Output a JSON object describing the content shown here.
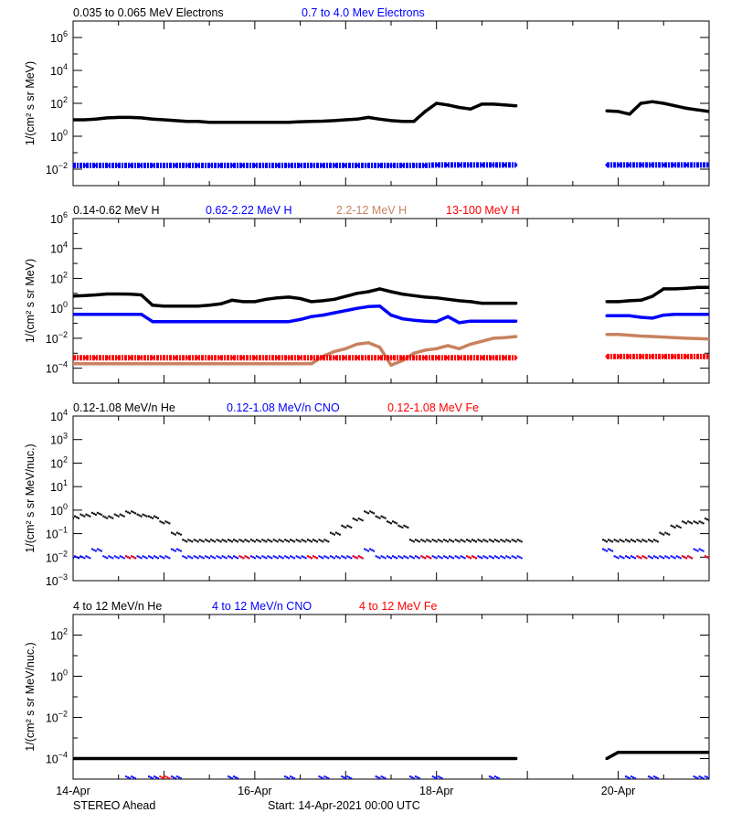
{
  "footer": {
    "spacecraft": "STEREO Ahead",
    "start": "Start: 14-Apr-2021 00:00 UTC"
  },
  "x_tick_labels": [
    "14-Apr",
    "16-Apr",
    "18-Apr",
    "20-Apr"
  ],
  "x_range": [
    "14-Apr-2021 00:00",
    "21-Apr-2021 00:00"
  ],
  "colors": {
    "black": "#000000",
    "blue": "#0000ff",
    "brown": "#c8825f",
    "red": "#ff0000"
  },
  "chart_data": [
    {
      "type": "scatter",
      "ylabel": "1/(cm² s sr MeV)",
      "yscale": "log",
      "ylim": [
        0.001,
        10000000
      ],
      "ytick_exponents": [
        6,
        4,
        2,
        0,
        -2
      ],
      "x": [
        "14-Apr 00:00",
        "14-Apr 03:00",
        "14-Apr 06:00",
        "14-Apr 09:00",
        "14-Apr 12:00",
        "14-Apr 15:00",
        "14-Apr 18:00",
        "14-Apr 21:00",
        "15-Apr 00:00",
        "15-Apr 03:00",
        "15-Apr 06:00",
        "15-Apr 09:00",
        "15-Apr 12:00",
        "15-Apr 15:00",
        "15-Apr 18:00",
        "15-Apr 21:00",
        "16-Apr 00:00",
        "16-Apr 03:00",
        "16-Apr 06:00",
        "16-Apr 09:00",
        "16-Apr 12:00",
        "16-Apr 15:00",
        "16-Apr 18:00",
        "16-Apr 21:00",
        "17-Apr 00:00",
        "17-Apr 03:00",
        "17-Apr 06:00",
        "17-Apr 09:00",
        "17-Apr 12:00",
        "17-Apr 15:00",
        "17-Apr 18:00",
        "17-Apr 21:00",
        "18-Apr 00:00",
        "18-Apr 03:00",
        "18-Apr 06:00",
        "18-Apr 09:00",
        "18-Apr 12:00",
        "18-Apr 15:00",
        "18-Apr 18:00",
        "18-Apr 21:00",
        "19-Apr 00:00",
        "19-Apr 03:00",
        "19-Apr 06:00",
        "19-Apr 09:00",
        "19-Apr 12:00",
        "19-Apr 15:00",
        "19-Apr 18:00",
        "19-Apr 21:00",
        "20-Apr 00:00",
        "20-Apr 03:00",
        "20-Apr 06:00",
        "20-Apr 09:00",
        "20-Apr 12:00",
        "20-Apr 15:00",
        "20-Apr 18:00",
        "20-Apr 21:00",
        "21-Apr 00:00"
      ],
      "series": [
        {
          "name": "0.035 to 0.065 MeV Electrons",
          "color": "#000000",
          "style": "line",
          "values": [
            10,
            10,
            11,
            13,
            14,
            14,
            13,
            11,
            10,
            8.9,
            7.9,
            7.9,
            7.1,
            7.1,
            7.1,
            7.1,
            7.1,
            7.1,
            7.1,
            7.1,
            7.6,
            7.9,
            8.3,
            8.9,
            10,
            11,
            14,
            11,
            8.9,
            7.9,
            7.9,
            32,
            100,
            79,
            56,
            45,
            89,
            89,
            79,
            71,
            null,
            null,
            null,
            null,
            null,
            null,
            null,
            35,
            32,
            22,
            100,
            126,
            100,
            71,
            50,
            40,
            32
          ]
        },
        {
          "name": "0.7 to 4.0 Mev Electrons",
          "color": "#0000ff",
          "style": "band",
          "values": [
            0.017,
            0.017,
            0.017,
            0.017,
            0.017,
            0.017,
            0.017,
            0.017,
            0.017,
            0.017,
            0.017,
            0.017,
            0.017,
            0.017,
            0.017,
            0.017,
            0.017,
            0.017,
            0.017,
            0.017,
            0.017,
            0.017,
            0.017,
            0.017,
            0.017,
            0.017,
            0.017,
            0.017,
            0.017,
            0.017,
            0.017,
            0.017,
            0.018,
            0.018,
            0.018,
            0.018,
            0.018,
            0.018,
            0.018,
            0.018,
            null,
            null,
            null,
            null,
            null,
            null,
            null,
            0.018,
            0.018,
            0.018,
            0.018,
            0.018,
            0.018,
            0.018,
            0.018,
            0.018,
            0.018
          ]
        }
      ]
    },
    {
      "type": "scatter",
      "ylabel": "1/(cm² s sr MeV)",
      "yscale": "log",
      "ylim": [
        1e-05,
        1000000
      ],
      "ytick_exponents": [
        6,
        4,
        2,
        0,
        -2,
        -4
      ],
      "series": [
        {
          "name": "0.14-0.62 MeV H",
          "color": "#000000",
          "style": "line",
          "values": [
            6.6,
            7.1,
            7.9,
            9.1,
            9.1,
            8.9,
            7.9,
            1.6,
            1.4,
            1.4,
            1.4,
            1.4,
            1.6,
            2.0,
            3.5,
            2.8,
            2.8,
            4.0,
            5.0,
            5.6,
            4.5,
            2.8,
            3.2,
            4.0,
            6.3,
            10,
            13,
            20,
            13,
            8.9,
            7.1,
            5.6,
            5.0,
            4.0,
            3.2,
            2.8,
            2.2,
            2.2,
            2.2,
            2.2,
            null,
            null,
            null,
            null,
            null,
            null,
            null,
            2.8,
            2.8,
            3.2,
            3.5,
            6.3,
            20,
            20,
            22,
            25,
            25
          ]
        },
        {
          "name": "0.62-2.22 MeV H",
          "color": "#0000ff",
          "style": "line",
          "values": [
            0.4,
            0.4,
            0.4,
            0.4,
            0.4,
            0.4,
            0.4,
            0.13,
            0.13,
            0.13,
            0.13,
            0.13,
            0.13,
            0.13,
            0.13,
            0.13,
            0.13,
            0.13,
            0.13,
            0.13,
            0.18,
            0.28,
            0.35,
            0.5,
            0.7,
            1.0,
            1.3,
            1.4,
            0.35,
            0.2,
            0.16,
            0.14,
            0.13,
            0.28,
            0.11,
            0.14,
            0.14,
            0.14,
            0.14,
            0.14,
            null,
            null,
            null,
            null,
            null,
            null,
            null,
            0.32,
            0.32,
            0.32,
            0.25,
            0.22,
            0.35,
            0.4,
            0.4,
            0.4,
            0.4
          ]
        },
        {
          "name": "2.2-12 MeV H",
          "color": "#c8825f",
          "style": "line",
          "values": [
            0.0002,
            0.0002,
            0.0002,
            0.0002,
            0.0002,
            0.0002,
            0.0002,
            0.0002,
            0.0002,
            0.0002,
            0.0002,
            0.0002,
            0.0002,
            0.0002,
            0.0002,
            0.0002,
            0.0002,
            0.0002,
            0.0002,
            0.0002,
            0.0002,
            0.0002,
            0.00063,
            0.0013,
            0.002,
            0.004,
            0.005,
            0.0025,
            0.00016,
            0.00032,
            0.001,
            0.0016,
            0.002,
            0.0032,
            0.002,
            0.004,
            0.0063,
            0.01,
            0.011,
            0.013,
            null,
            null,
            null,
            null,
            null,
            null,
            null,
            0.018,
            0.018,
            0.016,
            0.014,
            0.013,
            0.012,
            0.011,
            0.01,
            0.0095,
            0.009
          ]
        },
        {
          "name": "13-100 MeV H",
          "color": "#ff0000",
          "style": "band",
          "values": [
            0.0005,
            0.0005,
            0.0005,
            0.0005,
            0.0005,
            0.0005,
            0.0005,
            0.0005,
            0.0005,
            0.0005,
            0.0005,
            0.0005,
            0.0005,
            0.0005,
            0.0005,
            0.0005,
            0.0005,
            0.0005,
            0.0005,
            0.0005,
            0.0005,
            0.0005,
            0.0005,
            0.0005,
            0.0005,
            0.0005,
            0.0005,
            0.0005,
            0.0005,
            0.0005,
            0.0005,
            0.0005,
            0.0005,
            0.0005,
            0.0005,
            0.0005,
            0.0005,
            0.0005,
            0.0005,
            0.0005,
            null,
            null,
            null,
            null,
            null,
            null,
            null,
            0.0006,
            0.0006,
            0.0006,
            0.0006,
            0.0006,
            0.0006,
            0.0006,
            0.0006,
            0.0006,
            0.0006
          ]
        }
      ]
    },
    {
      "type": "scatter",
      "ylabel": "1/(cm² s sr MeV/nuc.)",
      "yscale": "log",
      "ylim": [
        0.001,
        10000
      ],
      "ytick_exponents": [
        4,
        3,
        2,
        1,
        0,
        -1,
        -2,
        -3
      ],
      "series": [
        {
          "name": "0.12-1.08 MeV/n He",
          "color": "#000000",
          "style": "points",
          "values": [
            0.5,
            0.6,
            0.7,
            0.5,
            0.6,
            0.8,
            0.6,
            0.5,
            0.3,
            0.1,
            0.05,
            0.05,
            0.05,
            0.05,
            0.05,
            0.05,
            0.05,
            0.05,
            0.05,
            0.05,
            0.05,
            0.05,
            0.05,
            0.1,
            0.2,
            0.4,
            0.8,
            0.5,
            0.3,
            0.2,
            0.05,
            0.05,
            0.05,
            0.05,
            0.05,
            0.05,
            0.05,
            0.05,
            0.05,
            0.05,
            null,
            null,
            null,
            null,
            null,
            null,
            null,
            0.05,
            0.05,
            0.05,
            0.05,
            0.05,
            0.1,
            0.2,
            0.3,
            0.3,
            0.4
          ]
        },
        {
          "name": "0.12-1.08 MeV/n CNO",
          "color": "#0000ff",
          "style": "points",
          "values": [
            0.01,
            0.01,
            0.02,
            0.01,
            0.01,
            0.01,
            0.01,
            0.01,
            0.01,
            0.02,
            0.01,
            0.01,
            0.01,
            0.01,
            0.01,
            0.01,
            0.01,
            0.01,
            0.01,
            0.01,
            0.01,
            0.01,
            0.01,
            0.01,
            0.01,
            0.01,
            0.02,
            0.01,
            0.01,
            0.01,
            0.01,
            0.01,
            0.01,
            0.01,
            0.01,
            0.01,
            0.01,
            0.01,
            0.01,
            0.01,
            null,
            null,
            null,
            null,
            null,
            null,
            null,
            0.02,
            0.01,
            0.01,
            0.01,
            0.01,
            0.01,
            0.01,
            0.01,
            0.02,
            0.01
          ]
        },
        {
          "name": "0.12-1.08 MeV Fe",
          "color": "#ff0000",
          "style": "points",
          "values": [
            null,
            null,
            null,
            null,
            null,
            0.01,
            null,
            null,
            null,
            null,
            null,
            null,
            null,
            null,
            null,
            0.01,
            null,
            null,
            null,
            null,
            null,
            0.01,
            null,
            null,
            null,
            0.01,
            null,
            null,
            null,
            null,
            null,
            0.01,
            null,
            null,
            null,
            0.01,
            null,
            null,
            null,
            null,
            null,
            null,
            null,
            null,
            null,
            null,
            null,
            null,
            null,
            null,
            0.01,
            null,
            null,
            null,
            0.01,
            null,
            0.01
          ]
        }
      ]
    },
    {
      "type": "scatter",
      "ylabel": "1/(cm² s sr MeV/nuc.)",
      "yscale": "log",
      "ylim": [
        1e-05,
        1000
      ],
      "ytick_exponents": [
        2,
        0,
        -2,
        -4
      ],
      "series": [
        {
          "name": "4 to 12 MeV/n He",
          "color": "#000000",
          "style": "line",
          "values": [
            0.0001,
            0.0001,
            0.0001,
            0.0001,
            0.0001,
            0.0001,
            0.0001,
            0.0001,
            0.0001,
            0.0001,
            0.0001,
            0.0001,
            0.0001,
            0.0001,
            0.0001,
            0.0001,
            0.0001,
            0.0001,
            0.0001,
            0.0001,
            0.0001,
            0.0001,
            0.0001,
            0.0001,
            0.0001,
            0.0001,
            0.0001,
            0.0001,
            0.0001,
            0.0001,
            0.0001,
            0.0001,
            0.0001,
            0.0001,
            0.0001,
            0.0001,
            0.0001,
            0.0001,
            0.0001,
            0.0001,
            null,
            null,
            null,
            null,
            null,
            null,
            null,
            0.0001,
            0.0002,
            0.0002,
            0.0002,
            0.0002,
            0.0002,
            0.0002,
            0.0002,
            0.0002,
            0.0002
          ]
        },
        {
          "name": "4 to 12 MeV/n CNO",
          "color": "#0000ff",
          "style": "points",
          "values": [
            null,
            null,
            null,
            null,
            null,
            1.2e-05,
            null,
            1.2e-05,
            null,
            1.2e-05,
            null,
            null,
            null,
            null,
            1.2e-05,
            null,
            null,
            null,
            null,
            1.2e-05,
            null,
            null,
            1.2e-05,
            null,
            1.2e-05,
            null,
            null,
            1.2e-05,
            null,
            null,
            1.2e-05,
            null,
            1.2e-05,
            null,
            null,
            null,
            null,
            1.2e-05,
            null,
            null,
            null,
            null,
            null,
            null,
            null,
            null,
            null,
            null,
            null,
            1.2e-05,
            null,
            1.2e-05,
            null,
            null,
            null,
            1.2e-05,
            1.2e-05
          ]
        },
        {
          "name": "4 to 12 MeV Fe",
          "color": "#ff0000",
          "style": "points",
          "values": [
            null,
            null,
            null,
            null,
            null,
            null,
            null,
            null,
            1.2e-05,
            null,
            null,
            null,
            null,
            null,
            null,
            null,
            null,
            null,
            null,
            null,
            null,
            null,
            null,
            null,
            null,
            null,
            null,
            null,
            null,
            null,
            null,
            null,
            null,
            null,
            null,
            null,
            null,
            null,
            null,
            null,
            null,
            null,
            null,
            null,
            null,
            null,
            null,
            null,
            null,
            null,
            null,
            null,
            null,
            null,
            null,
            null,
            null
          ]
        }
      ]
    }
  ]
}
